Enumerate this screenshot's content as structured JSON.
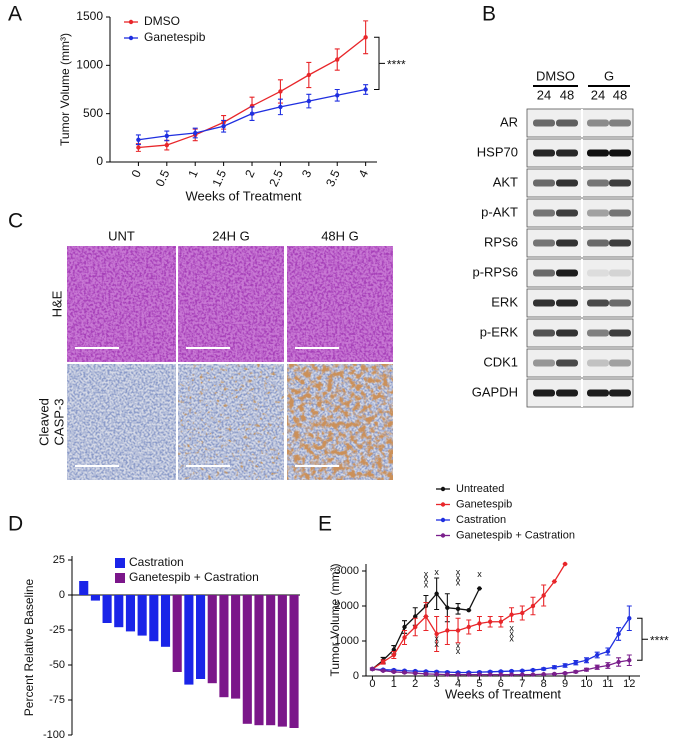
{
  "panel_labels": [
    "A",
    "B",
    "C",
    "D",
    "E"
  ],
  "blot": {
    "groups": [
      "DMSO",
      "G"
    ],
    "lanes": [
      "24",
      "48",
      "24",
      "48"
    ],
    "proteins": [
      "AR",
      "HSP70",
      "AKT",
      "p-AKT",
      "RPS6",
      "p-RPS6",
      "ERK",
      "p-ERK",
      "CDK1",
      "GAPDH"
    ]
  },
  "histology": {
    "columns": [
      "UNT",
      "24H G",
      "48H G"
    ],
    "rows": [
      [
        "H&E"
      ],
      [
        "Cleaved",
        "CASP-3"
      ]
    ]
  },
  "chart_data": [
    {
      "type": "line",
      "x_label": "Weeks of Treatment",
      "y_label": "Tumor Volume (mm³)",
      "x": [
        0,
        0.5,
        1,
        1.5,
        2,
        2.5,
        3,
        3.5,
        4
      ],
      "xlim": [
        -0.5,
        4.2
      ],
      "xticks": [
        0,
        0.5,
        1,
        1.5,
        2,
        2.5,
        3,
        3.5,
        4
      ],
      "ylim": [
        0,
        1500
      ],
      "yticks": [
        0,
        500,
        1000,
        1500
      ],
      "legend": "upper left",
      "annotation": "****",
      "series": [
        {
          "name": "DMSO",
          "color": "#e8262a",
          "values": [
            150,
            175,
            280,
            410,
            580,
            730,
            900,
            1060,
            1290
          ],
          "errors": [
            40,
            50,
            60,
            70,
            90,
            120,
            130,
            110,
            170
          ]
        },
        {
          "name": "Ganetespib",
          "color": "#1f2fe0",
          "values": [
            230,
            270,
            300,
            370,
            500,
            570,
            630,
            690,
            750
          ],
          "errors": [
            50,
            50,
            50,
            60,
            70,
            80,
            70,
            60,
            50
          ]
        }
      ]
    },
    {
      "type": "bar",
      "y_label": "Percent Relative Baseline",
      "categories": [
        null,
        null,
        null,
        null,
        null,
        null,
        null,
        null,
        null,
        null,
        null,
        null,
        null,
        null,
        null,
        null,
        null,
        null,
        null
      ],
      "ylim": [
        -100,
        25
      ],
      "yticks": [
        25,
        0,
        -25,
        -50,
        -75,
        -100
      ],
      "legend": "upper left",
      "series": [
        {
          "name": "Castration",
          "color": "#1a24e8",
          "values": [
            10,
            -4,
            -20,
            -23,
            -26,
            -29,
            -33,
            -37,
            null,
            -64,
            -60,
            null,
            null,
            null,
            null,
            null,
            null,
            null,
            null
          ]
        },
        {
          "name": "Ganetespib + Castration",
          "color": "#7b168a",
          "values": [
            null,
            null,
            null,
            null,
            null,
            null,
            null,
            null,
            -55,
            null,
            null,
            -63,
            -73,
            -74,
            -92,
            -93,
            -93,
            -94,
            -95
          ]
        }
      ]
    },
    {
      "type": "line",
      "x_label": "Weeks of Treatment",
      "y_label": "Tumor Volume (mm³)",
      "x": [
        0,
        0.5,
        1,
        1.5,
        2,
        2.5,
        3,
        3.5,
        4,
        4.5,
        5,
        5.5,
        6,
        6.5,
        7,
        7.5,
        8,
        8.5,
        9,
        9.5,
        10,
        10.5,
        11,
        11.5,
        12
      ],
      "xlim": [
        -0.3,
        12.5
      ],
      "xticks": [
        0,
        1,
        2,
        3,
        4,
        5,
        6,
        7,
        8,
        9,
        10,
        11,
        12
      ],
      "ylim": [
        0,
        3200
      ],
      "yticks": [
        0,
        1000,
        2000,
        3000
      ],
      "legend": "top",
      "annotation": "****",
      "death_marks": [
        {
          "label": "x",
          "x": 2.5,
          "y": 2900
        },
        {
          "label": "x",
          "x": 2.5,
          "y": 2750
        },
        {
          "label": "x",
          "x": 2.5,
          "y": 2600
        },
        {
          "label": "x",
          "x": 3,
          "y": 2950
        },
        {
          "label": "x",
          "x": 3,
          "y": 1050
        },
        {
          "label": "x",
          "x": 3,
          "y": 900
        },
        {
          "label": "x",
          "x": 4,
          "y": 2950
        },
        {
          "label": "x",
          "x": 4,
          "y": 2800
        },
        {
          "label": "x",
          "x": 4,
          "y": 2650
        },
        {
          "label": "x",
          "x": 4,
          "y": 850
        },
        {
          "label": "x",
          "x": 4,
          "y": 700
        },
        {
          "label": "x",
          "x": 5,
          "y": 2900
        },
        {
          "label": "x",
          "x": 6.5,
          "y": 1350
        },
        {
          "label": "x",
          "x": 6.5,
          "y": 1200
        },
        {
          "label": "x",
          "x": 6.5,
          "y": 1050
        }
      ],
      "series": [
        {
          "name": "Untreated",
          "color": "#111111",
          "values": [
            200,
            450,
            750,
            1400,
            1700,
            2000,
            2350,
            1950,
            1920,
            1880,
            2500,
            null,
            null,
            null,
            null,
            null,
            null,
            null,
            null,
            null,
            null,
            null,
            null,
            null,
            null
          ],
          "errors": [
            30,
            80,
            120,
            180,
            250,
            300,
            450,
            400,
            150,
            0,
            0,
            null,
            null,
            null,
            null,
            null,
            null,
            null,
            null,
            null,
            null,
            null,
            null,
            null,
            null
          ]
        },
        {
          "name": "Ganetespib",
          "color": "#e8262a",
          "values": [
            200,
            400,
            600,
            1100,
            1400,
            1700,
            1200,
            1300,
            1300,
            1400,
            1500,
            1550,
            1550,
            1750,
            1800,
            2000,
            2300,
            2700,
            3200,
            null,
            null,
            null,
            null,
            null,
            null
          ],
          "errors": [
            30,
            60,
            100,
            200,
            250,
            400,
            500,
            400,
            350,
            200,
            200,
            150,
            150,
            200,
            200,
            250,
            300,
            0,
            0,
            null,
            null,
            null,
            null,
            null,
            null
          ]
        },
        {
          "name": "Castration",
          "color": "#1f2fe0",
          "values": [
            200,
            180,
            170,
            150,
            140,
            130,
            120,
            110,
            100,
            100,
            110,
            120,
            130,
            140,
            150,
            170,
            200,
            250,
            300,
            380,
            450,
            600,
            700,
            1200,
            1650
          ],
          "errors": [
            20,
            20,
            20,
            20,
            20,
            20,
            20,
            20,
            20,
            20,
            20,
            20,
            20,
            20,
            20,
            20,
            30,
            40,
            50,
            60,
            70,
            80,
            100,
            180,
            350
          ]
        },
        {
          "name": "Ganetespib + Castration",
          "color": "#7a1f8c",
          "values": [
            200,
            150,
            120,
            100,
            80,
            60,
            50,
            40,
            40,
            40,
            40,
            40,
            40,
            40,
            40,
            40,
            50,
            60,
            80,
            120,
            180,
            250,
            300,
            400,
            450
          ],
          "errors": [
            20,
            20,
            20,
            20,
            15,
            15,
            10,
            10,
            10,
            10,
            10,
            10,
            10,
            10,
            10,
            10,
            10,
            15,
            20,
            30,
            40,
            60,
            80,
            120,
            150
          ]
        }
      ]
    }
  ]
}
